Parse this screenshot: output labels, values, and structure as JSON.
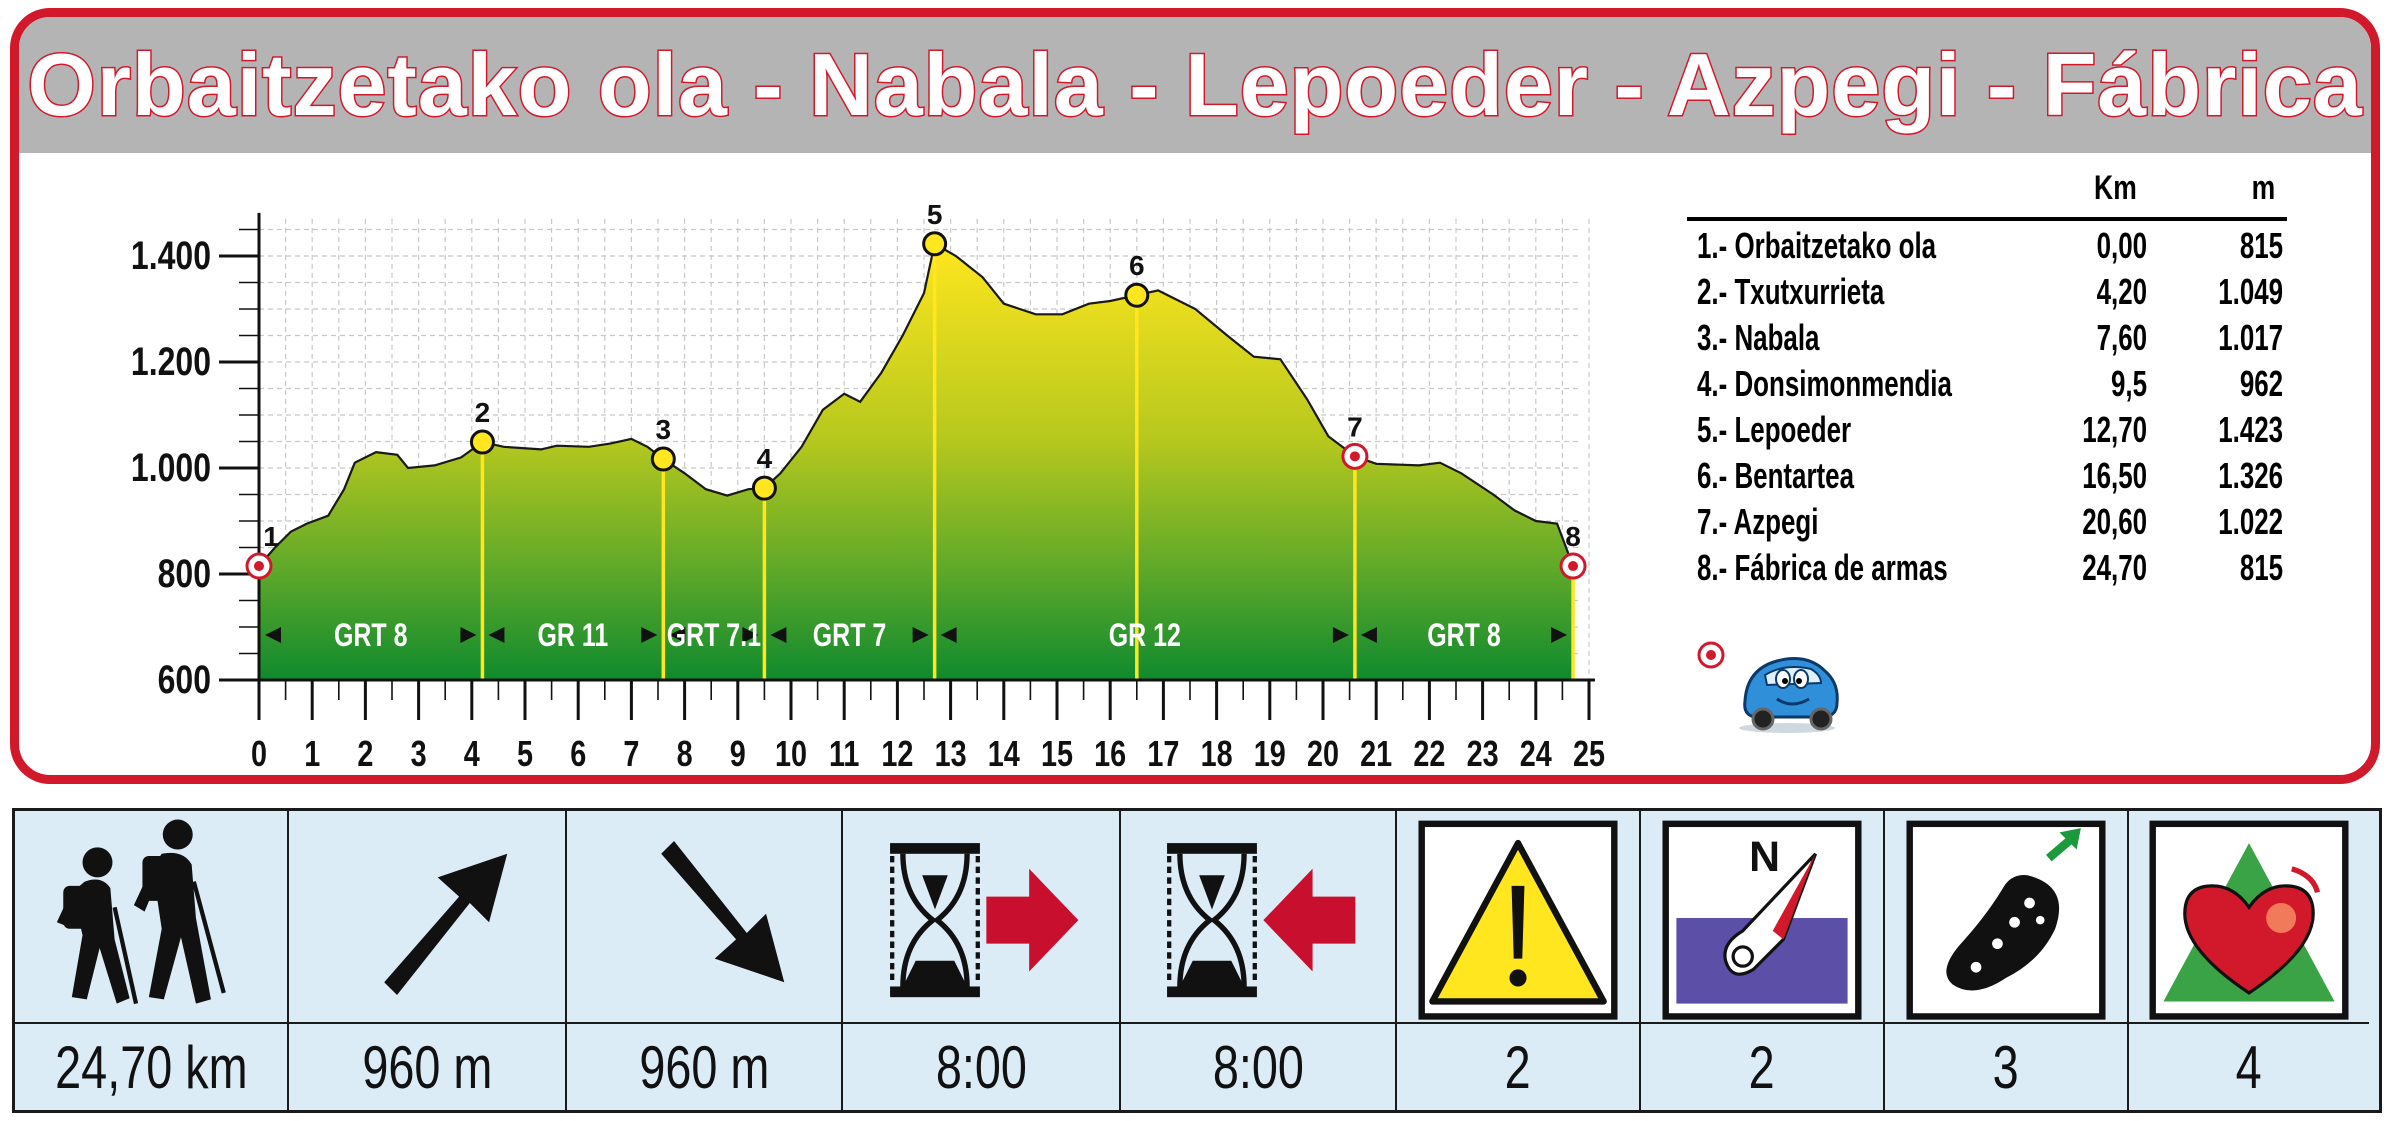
{
  "title": "Orbaitzetako ola - Nabala - Lepoeder - Azpegi - Fábrica",
  "chart_data": {
    "type": "area",
    "x_ticks": [
      0,
      1,
      2,
      3,
      4,
      5,
      6,
      7,
      8,
      9,
      10,
      11,
      12,
      13,
      14,
      15,
      16,
      17,
      18,
      19,
      20,
      21,
      22,
      23,
      24,
      25
    ],
    "y_ticks": [
      "600",
      "800",
      "1.000",
      "1.200",
      "1.400"
    ],
    "xlim": [
      0,
      25
    ],
    "ylim": [
      600,
      1470
    ],
    "grid": true,
    "profile": [
      [
        0,
        815
      ],
      [
        0.3,
        850
      ],
      [
        0.6,
        880
      ],
      [
        0.9,
        895
      ],
      [
        1.3,
        910
      ],
      [
        1.6,
        960
      ],
      [
        1.8,
        1010
      ],
      [
        2.2,
        1030
      ],
      [
        2.6,
        1025
      ],
      [
        2.8,
        1000
      ],
      [
        3.3,
        1005
      ],
      [
        3.8,
        1020
      ],
      [
        4.2,
        1049
      ],
      [
        4.6,
        1040
      ],
      [
        5.3,
        1035
      ],
      [
        5.6,
        1042
      ],
      [
        6.2,
        1040
      ],
      [
        6.6,
        1046
      ],
      [
        7.0,
        1055
      ],
      [
        7.3,
        1040
      ],
      [
        7.6,
        1017
      ],
      [
        8.0,
        990
      ],
      [
        8.4,
        960
      ],
      [
        8.8,
        948
      ],
      [
        9.2,
        960
      ],
      [
        9.5,
        962
      ],
      [
        9.8,
        990
      ],
      [
        10.2,
        1040
      ],
      [
        10.6,
        1110
      ],
      [
        11.0,
        1140
      ],
      [
        11.3,
        1125
      ],
      [
        11.7,
        1180
      ],
      [
        12.1,
        1250
      ],
      [
        12.5,
        1330
      ],
      [
        12.7,
        1423
      ],
      [
        13.1,
        1400
      ],
      [
        13.6,
        1360
      ],
      [
        14.0,
        1310
      ],
      [
        14.6,
        1290
      ],
      [
        15.1,
        1290
      ],
      [
        15.6,
        1310
      ],
      [
        16.0,
        1315
      ],
      [
        16.5,
        1326
      ],
      [
        16.9,
        1335
      ],
      [
        17.2,
        1320
      ],
      [
        17.6,
        1300
      ],
      [
        18.2,
        1250
      ],
      [
        18.7,
        1210
      ],
      [
        19.2,
        1205
      ],
      [
        19.7,
        1130
      ],
      [
        20.1,
        1060
      ],
      [
        20.6,
        1022
      ],
      [
        21.0,
        1008
      ],
      [
        21.8,
        1005
      ],
      [
        22.2,
        1010
      ],
      [
        22.6,
        990
      ],
      [
        23.2,
        950
      ],
      [
        23.6,
        920
      ],
      [
        24.0,
        900
      ],
      [
        24.4,
        895
      ],
      [
        24.7,
        815
      ]
    ],
    "waypoints": [
      {
        "label": "1",
        "km": 0,
        "m": 815,
        "marker": "red"
      },
      {
        "label": "2",
        "km": 4.2,
        "m": 1049,
        "marker": "yellow"
      },
      {
        "label": "3",
        "km": 7.6,
        "m": 1017,
        "marker": "yellow"
      },
      {
        "label": "4",
        "km": 9.5,
        "m": 962,
        "marker": "yellow"
      },
      {
        "label": "5",
        "km": 12.7,
        "m": 1423,
        "marker": "yellow"
      },
      {
        "label": "6",
        "km": 16.5,
        "m": 1326,
        "marker": "yellow"
      },
      {
        "label": "7",
        "km": 20.6,
        "m": 1022,
        "marker": "red"
      },
      {
        "label": "8",
        "km": 24.7,
        "m": 815,
        "marker": "red"
      }
    ],
    "segments": [
      {
        "label": "GRT 8",
        "from": 0,
        "to": 4.2
      },
      {
        "label": "GR 11",
        "from": 4.2,
        "to": 7.6
      },
      {
        "label": "GRT 7.1",
        "from": 7.6,
        "to": 9.5
      },
      {
        "label": "GRT 7",
        "from": 9.5,
        "to": 12.7
      },
      {
        "label": "GR 12",
        "from": 12.7,
        "to": 20.6
      },
      {
        "label": "GRT 8",
        "from": 20.6,
        "to": 24.7
      }
    ],
    "colors": {
      "fill_top": "#ffe61e",
      "fill_mid": "#9ebc22",
      "fill_bottom": "#128a2c",
      "markers_red": "#d2192b",
      "markers_yellow": "#ffe61e"
    }
  },
  "table": {
    "header_km": "Km",
    "header_m": "m",
    "rows": [
      {
        "name": "1.- Orbaitzetako ola",
        "km": "0,00",
        "m": "815"
      },
      {
        "name": "2.- Txutxurrieta",
        "km": "4,20",
        "m": "1.049"
      },
      {
        "name": "3.- Nabala",
        "km": "7,60",
        "m": "1.017"
      },
      {
        "name": "4.- Donsimonmendia",
        "km": "9,5",
        "m": "962"
      },
      {
        "name": "5.- Lepoeder",
        "km": "12,70",
        "m": "1.423"
      },
      {
        "name": "6.- Bentartea",
        "km": "16,50",
        "m": "1.326"
      },
      {
        "name": "7.- Azpegi",
        "km": "20,60",
        "m": "1.022"
      },
      {
        "name": "8.- Fábrica de armas",
        "km": "24,70",
        "m": "815"
      }
    ]
  },
  "legend": {
    "icon": "car-icon",
    "marker": "red-circle-marker"
  },
  "summary": [
    {
      "icon": "hikers-icon",
      "value": "24,70 km"
    },
    {
      "icon": "arrow-up-icon",
      "value": "960 m"
    },
    {
      "icon": "arrow-down-icon",
      "value": "960 m"
    },
    {
      "icon": "hourglass-forward-icon",
      "value": "8:00"
    },
    {
      "icon": "hourglass-back-icon",
      "value": "8:00"
    },
    {
      "icon": "warning-icon",
      "value": "2"
    },
    {
      "icon": "compass-icon",
      "value": "2"
    },
    {
      "icon": "footprint-icon",
      "value": "3"
    },
    {
      "icon": "heart-mountain-icon",
      "value": "4"
    }
  ]
}
